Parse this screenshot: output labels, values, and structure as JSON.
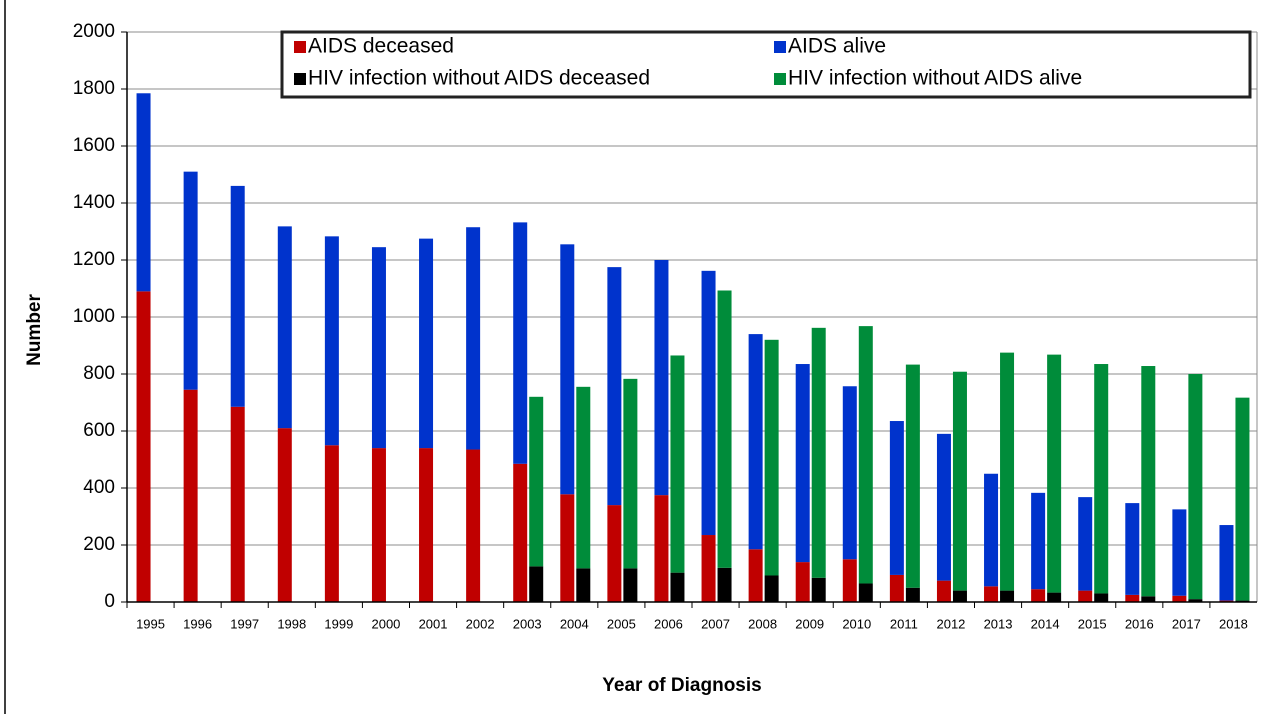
{
  "chart_data": {
    "type": "bar",
    "xlabel": "Year of Diagnosis",
    "ylabel": "Number",
    "categories": [
      "1995",
      "1996",
      "1997",
      "1998",
      "1999",
      "2000",
      "2001",
      "2002",
      "2003",
      "2004",
      "2005",
      "2006",
      "2007",
      "2008",
      "2009",
      "2010",
      "2011",
      "2012",
      "2013",
      "2014",
      "2015",
      "2016",
      "2017",
      "2018"
    ],
    "series": [
      {
        "name": "AIDS deceased",
        "color": "#c00000",
        "values": [
          1090,
          745,
          685,
          610,
          550,
          540,
          540,
          535,
          485,
          378,
          340,
          375,
          235,
          185,
          140,
          150,
          95,
          75,
          55,
          45,
          40,
          25,
          22,
          5
        ]
      },
      {
        "name": "AIDS alive",
        "color": "#0033cc",
        "values": [
          695,
          765,
          775,
          708,
          733,
          705,
          735,
          780,
          847,
          877,
          835,
          825,
          927,
          755,
          695,
          607,
          540,
          515,
          395,
          338,
          328,
          322,
          303,
          265
        ]
      },
      {
        "name": "HIV infection without AIDS deceased",
        "color": "#000000",
        "values": [
          null,
          null,
          null,
          null,
          null,
          null,
          null,
          null,
          125,
          118,
          118,
          103,
          120,
          93,
          85,
          65,
          50,
          40,
          40,
          33,
          30,
          20,
          10,
          5
        ]
      },
      {
        "name": "HIV infection without AIDS alive",
        "color": "#008c3a",
        "values": [
          null,
          null,
          null,
          null,
          null,
          null,
          null,
          null,
          595,
          637,
          665,
          762,
          973,
          827,
          877,
          903,
          783,
          768,
          835,
          835,
          805,
          808,
          790,
          712
        ]
      }
    ],
    "ylim": [
      0,
      2000
    ],
    "yticks": [
      0,
      200,
      400,
      600,
      800,
      1000,
      1200,
      1400,
      1600,
      1800,
      2000
    ],
    "grid": true,
    "legend": "top"
  }
}
